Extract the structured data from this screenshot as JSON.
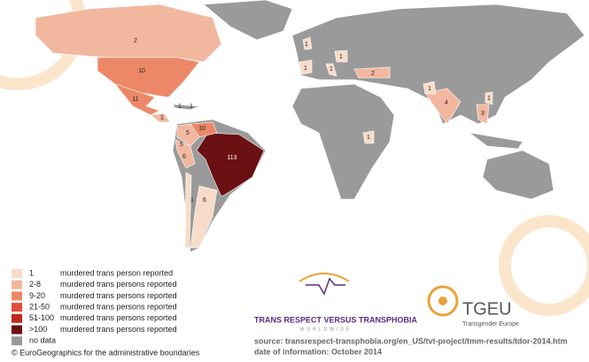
{
  "map_labels": [
    "2",
    "10",
    "11",
    "1",
    "1",
    "1",
    "10",
    "5",
    "5",
    "6",
    "113",
    "1",
    "6",
    "1",
    "1",
    "1",
    "1",
    "2",
    "1",
    "4",
    "3",
    "1",
    "1"
  ],
  "legend": {
    "items": [
      {
        "range": "1",
        "text": "murdered trans person reported",
        "color": "#f7dcc9"
      },
      {
        "range": "2-8",
        "text": "murdered trans persons reported",
        "color": "#f2b79f"
      },
      {
        "range": "9-20",
        "text": "murdered trans persons reported",
        "color": "#ec8867"
      },
      {
        "range": "21-50",
        "text": "murdered trans persons reported",
        "color": "#e0503a"
      },
      {
        "range": "51-100",
        "text": "murdered trans persons reported",
        "color": "#bf2a20"
      },
      {
        "range": ">100",
        "text": "murdered trans persons reported",
        "color": "#6b1013"
      },
      {
        "range": "no data",
        "color": "#9a9a9a"
      }
    ]
  },
  "credit": "© EuroGeographics for the administrative boundaries",
  "logos": {
    "trv": {
      "title": "TRANS RESPECT VERSUS TRANSPHOBIA",
      "subtitle": "WORLDWIDE"
    },
    "tgeu": {
      "title": "TGEU",
      "subtitle": "Transgender Europe"
    }
  },
  "source": [
    "source: transrespect-transphobia.org/en_US/tvt-project/tmm-results/tdor-2014.htm",
    "date of information: October 2014"
  ]
}
